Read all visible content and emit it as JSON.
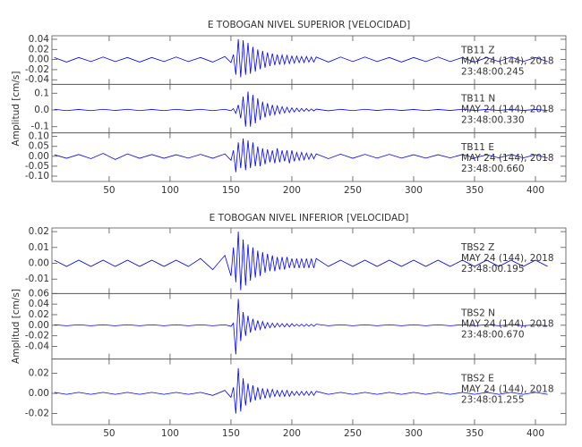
{
  "chart_data": [
    {
      "type": "line",
      "title": "E TOBOGAN NIVEL SUPERIOR [VELOCIDAD]",
      "ylabel": "Amplitud [cm/s]",
      "color": "#0000ff",
      "xlim": [
        3,
        425
      ],
      "xticks": [
        50,
        100,
        150,
        200,
        250,
        300,
        350,
        400
      ],
      "x": [
        5,
        15,
        25,
        35,
        45,
        55,
        65,
        75,
        85,
        95,
        105,
        115,
        125,
        135,
        145,
        150,
        152,
        154,
        156,
        158,
        160,
        162,
        164,
        166,
        168,
        170,
        172,
        174,
        176,
        178,
        180,
        182,
        184,
        186,
        188,
        190,
        192,
        194,
        196,
        198,
        200,
        202,
        204,
        206,
        208,
        210,
        212,
        214,
        216,
        218,
        220,
        230,
        240,
        250,
        260,
        270,
        280,
        290,
        300,
        310,
        320,
        330,
        340,
        350,
        360,
        370,
        380,
        390,
        400,
        410
      ],
      "panels": [
        {
          "station": "TB11   Z",
          "date": "MAY 24 (144), 2018",
          "time": "23:48:00.245",
          "ylim": [
            -0.049,
            0.047
          ],
          "yticks": [
            -0.04,
            -0.02,
            {
              "value": 0,
              "label": "0.00"
            },
            0.02,
            0.04
          ],
          "values": [
            0.004,
            -0.005,
            0.004,
            -0.004,
            0.005,
            -0.004,
            0.004,
            -0.005,
            0.004,
            -0.004,
            0.005,
            -0.004,
            0.004,
            -0.005,
            0.006,
            -0.006,
            0.01,
            -0.03,
            0.04,
            -0.035,
            0.038,
            -0.03,
            0.033,
            -0.028,
            0.025,
            -0.024,
            0.02,
            -0.019,
            0.017,
            -0.016,
            0.014,
            -0.013,
            0.012,
            -0.011,
            0.01,
            -0.01,
            0.009,
            -0.009,
            0.008,
            -0.008,
            0.007,
            -0.007,
            0.007,
            -0.006,
            0.006,
            -0.006,
            0.006,
            -0.005,
            0.005,
            -0.005,
            0.005,
            -0.005,
            0.005,
            -0.004,
            0.005,
            -0.004,
            0.004,
            -0.005,
            0.004,
            -0.004,
            0.005,
            -0.004,
            0.004,
            -0.005,
            0.004,
            -0.004,
            0.005,
            -0.004,
            0.004,
            -0.004
          ]
        },
        {
          "station": "TB11   N",
          "date": "MAY 24 (144), 2018",
          "time": "23:48:00.330",
          "ylim": [
            -0.137,
            0.153
          ],
          "yticks": [
            {
              "value": -0.1,
              "label": "-0.1"
            },
            {
              "value": 0,
              "label": "0.0"
            },
            0.1
          ],
          "values": [
            0.004,
            -0.004,
            0.003,
            -0.004,
            0.004,
            -0.003,
            0.004,
            -0.004,
            0.003,
            -0.004,
            0.004,
            -0.003,
            0.004,
            -0.004,
            0.004,
            -0.005,
            0.008,
            -0.02,
            0.03,
            -0.05,
            0.08,
            -0.1,
            0.11,
            -0.1,
            0.09,
            -0.08,
            0.07,
            -0.06,
            0.05,
            -0.045,
            0.04,
            -0.035,
            0.03,
            -0.028,
            0.025,
            -0.022,
            0.02,
            -0.018,
            0.016,
            -0.015,
            0.013,
            -0.012,
            0.011,
            -0.01,
            0.009,
            -0.008,
            0.008,
            -0.007,
            0.006,
            -0.006,
            0.005,
            -0.005,
            0.004,
            -0.004,
            0.004,
            -0.003,
            0.004,
            -0.003,
            0.003,
            -0.004,
            0.003,
            -0.003,
            0.004,
            -0.003,
            0.003,
            -0.003,
            0.004,
            -0.003,
            0.003,
            -0.003
          ]
        },
        {
          "station": "TB11   E",
          "date": "MAY 24 (144), 2018",
          "time": "23:48:00.660",
          "ylim": [
            -0.127,
            0.118
          ],
          "yticks": [
            {
              "value": -0.1,
              "label": "-0.10"
            },
            -0.05,
            {
              "value": 0,
              "label": "0.00"
            },
            0.05,
            {
              "value": 0.1,
              "label": "0.10"
            }
          ],
          "values": [
            0.008,
            -0.01,
            0.009,
            -0.012,
            0.015,
            -0.016,
            0.012,
            -0.01,
            0.009,
            -0.01,
            0.008,
            -0.009,
            0.01,
            -0.01,
            0.012,
            -0.02,
            0.03,
            -0.08,
            0.07,
            -0.06,
            0.09,
            -0.07,
            0.08,
            -0.06,
            0.07,
            -0.05,
            0.05,
            -0.05,
            0.04,
            -0.04,
            0.035,
            -0.03,
            0.03,
            -0.035,
            0.04,
            -0.03,
            0.03,
            -0.025,
            0.03,
            -0.035,
            0.03,
            -0.025,
            0.02,
            -0.02,
            0.02,
            -0.018,
            0.016,
            -0.015,
            0.014,
            -0.013,
            0.012,
            -0.012,
            0.011,
            -0.01,
            0.01,
            -0.009,
            0.01,
            -0.009,
            0.008,
            -0.009,
            0.008,
            -0.008,
            0.009,
            -0.008,
            0.008,
            -0.008,
            0.009,
            -0.008,
            0.008,
            -0.008
          ]
        }
      ]
    },
    {
      "type": "line",
      "title": "E TOBOGAN NIVEL INFERIOR [VELOCIDAD]",
      "ylabel": "Amplitud [cm/s]",
      "color": "#0000ff",
      "xlim": [
        3,
        425
      ],
      "xticks": [
        50,
        100,
        150,
        200,
        250,
        300,
        350,
        400
      ],
      "x": [
        5,
        15,
        25,
        35,
        45,
        55,
        65,
        75,
        85,
        95,
        105,
        115,
        125,
        135,
        145,
        150,
        152,
        154,
        156,
        158,
        160,
        162,
        164,
        166,
        168,
        170,
        172,
        174,
        176,
        178,
        180,
        182,
        184,
        186,
        188,
        190,
        192,
        194,
        196,
        198,
        200,
        202,
        204,
        206,
        208,
        210,
        212,
        214,
        216,
        218,
        220,
        230,
        240,
        250,
        260,
        270,
        280,
        290,
        300,
        310,
        320,
        330,
        340,
        350,
        360,
        370,
        380,
        390,
        400,
        410
      ],
      "panels": [
        {
          "station": "TBS2   Z",
          "date": "MAY 24 (144), 2018",
          "time": "23:48:00.195",
          "ylim": [
            -0.0191,
            0.0223
          ],
          "yticks": [
            -0.01,
            {
              "value": 0,
              "label": "0.00"
            },
            0.01,
            0.02
          ],
          "values": [
            0.002,
            -0.002,
            0.002,
            -0.002,
            0.002,
            -0.002,
            0.002,
            -0.002,
            0.002,
            -0.002,
            0.002,
            -0.002,
            0.003,
            -0.004,
            0.005,
            -0.008,
            0.01,
            -0.012,
            0.02,
            -0.017,
            0.015,
            -0.014,
            0.012,
            -0.011,
            0.01,
            -0.009,
            0.008,
            -0.008,
            0.007,
            -0.006,
            0.006,
            -0.005,
            0.005,
            -0.005,
            0.004,
            -0.004,
            0.004,
            -0.004,
            0.004,
            -0.003,
            0.003,
            -0.003,
            0.003,
            -0.003,
            0.003,
            -0.003,
            0.003,
            -0.003,
            0.003,
            -0.003,
            0.003,
            -0.002,
            0.002,
            -0.002,
            0.002,
            -0.002,
            0.002,
            -0.002,
            0.002,
            -0.002,
            0.002,
            -0.002,
            0.002,
            -0.002,
            0.002,
            -0.002,
            0.002,
            -0.002,
            0.002,
            -0.002
          ]
        },
        {
          "station": "TBS2   N",
          "date": "MAY 24 (144), 2018",
          "time": "23:48:00.670",
          "ylim": [
            -0.064,
            0.06
          ],
          "yticks": [
            -0.04,
            -0.02,
            {
              "value": 0,
              "label": "0.00"
            },
            0.02,
            0.04,
            0.06
          ],
          "values": [
            0.001,
            -0.001,
            0.001,
            -0.001,
            0.001,
            -0.001,
            0.001,
            -0.001,
            0.001,
            -0.001,
            0.001,
            -0.001,
            0.001,
            -0.001,
            0.001,
            -0.002,
            0.004,
            -0.055,
            0.05,
            -0.03,
            0.025,
            -0.02,
            0.018,
            -0.014,
            0.012,
            -0.01,
            0.009,
            -0.008,
            0.007,
            -0.006,
            0.005,
            -0.005,
            0.004,
            -0.004,
            0.004,
            -0.003,
            0.003,
            -0.003,
            0.003,
            -0.003,
            0.003,
            -0.002,
            0.002,
            -0.002,
            0.002,
            -0.002,
            0.002,
            -0.002,
            0.002,
            -0.002,
            0.002,
            -0.001,
            0.001,
            -0.001,
            0.001,
            -0.001,
            0.001,
            -0.001,
            0.001,
            -0.001,
            0.001,
            -0.001,
            0.001,
            -0.001,
            0.001,
            -0.001,
            0.001,
            -0.001,
            0.001,
            -0.001
          ]
        },
        {
          "station": "TBS2   E",
          "date": "MAY 24 (144), 2018",
          "time": "23:48:01.255",
          "ylim": [
            -0.031,
            0.034
          ],
          "yticks": [
            -0.02,
            {
              "value": 0,
              "label": "0.00"
            },
            0.02
          ],
          "values": [
            0.001,
            -0.001,
            0.001,
            -0.001,
            0.001,
            -0.001,
            0.001,
            -0.001,
            0.001,
            -0.001,
            0.001,
            -0.001,
            0.001,
            -0.002,
            0.003,
            -0.004,
            0.006,
            -0.02,
            0.025,
            -0.018,
            0.015,
            -0.012,
            0.01,
            -0.009,
            0.008,
            -0.007,
            0.006,
            -0.006,
            0.005,
            -0.005,
            0.004,
            -0.004,
            0.004,
            -0.003,
            0.003,
            -0.003,
            0.003,
            -0.003,
            0.003,
            -0.003,
            0.002,
            -0.002,
            0.002,
            -0.002,
            0.002,
            -0.002,
            0.002,
            -0.002,
            0.002,
            -0.002,
            0.002,
            -0.001,
            0.001,
            -0.001,
            0.001,
            -0.001,
            0.001,
            -0.001,
            0.001,
            -0.001,
            0.001,
            -0.001,
            0.001,
            -0.001,
            0.001,
            -0.001,
            0.001,
            -0.001,
            0.001,
            -0.001
          ]
        }
      ]
    }
  ]
}
